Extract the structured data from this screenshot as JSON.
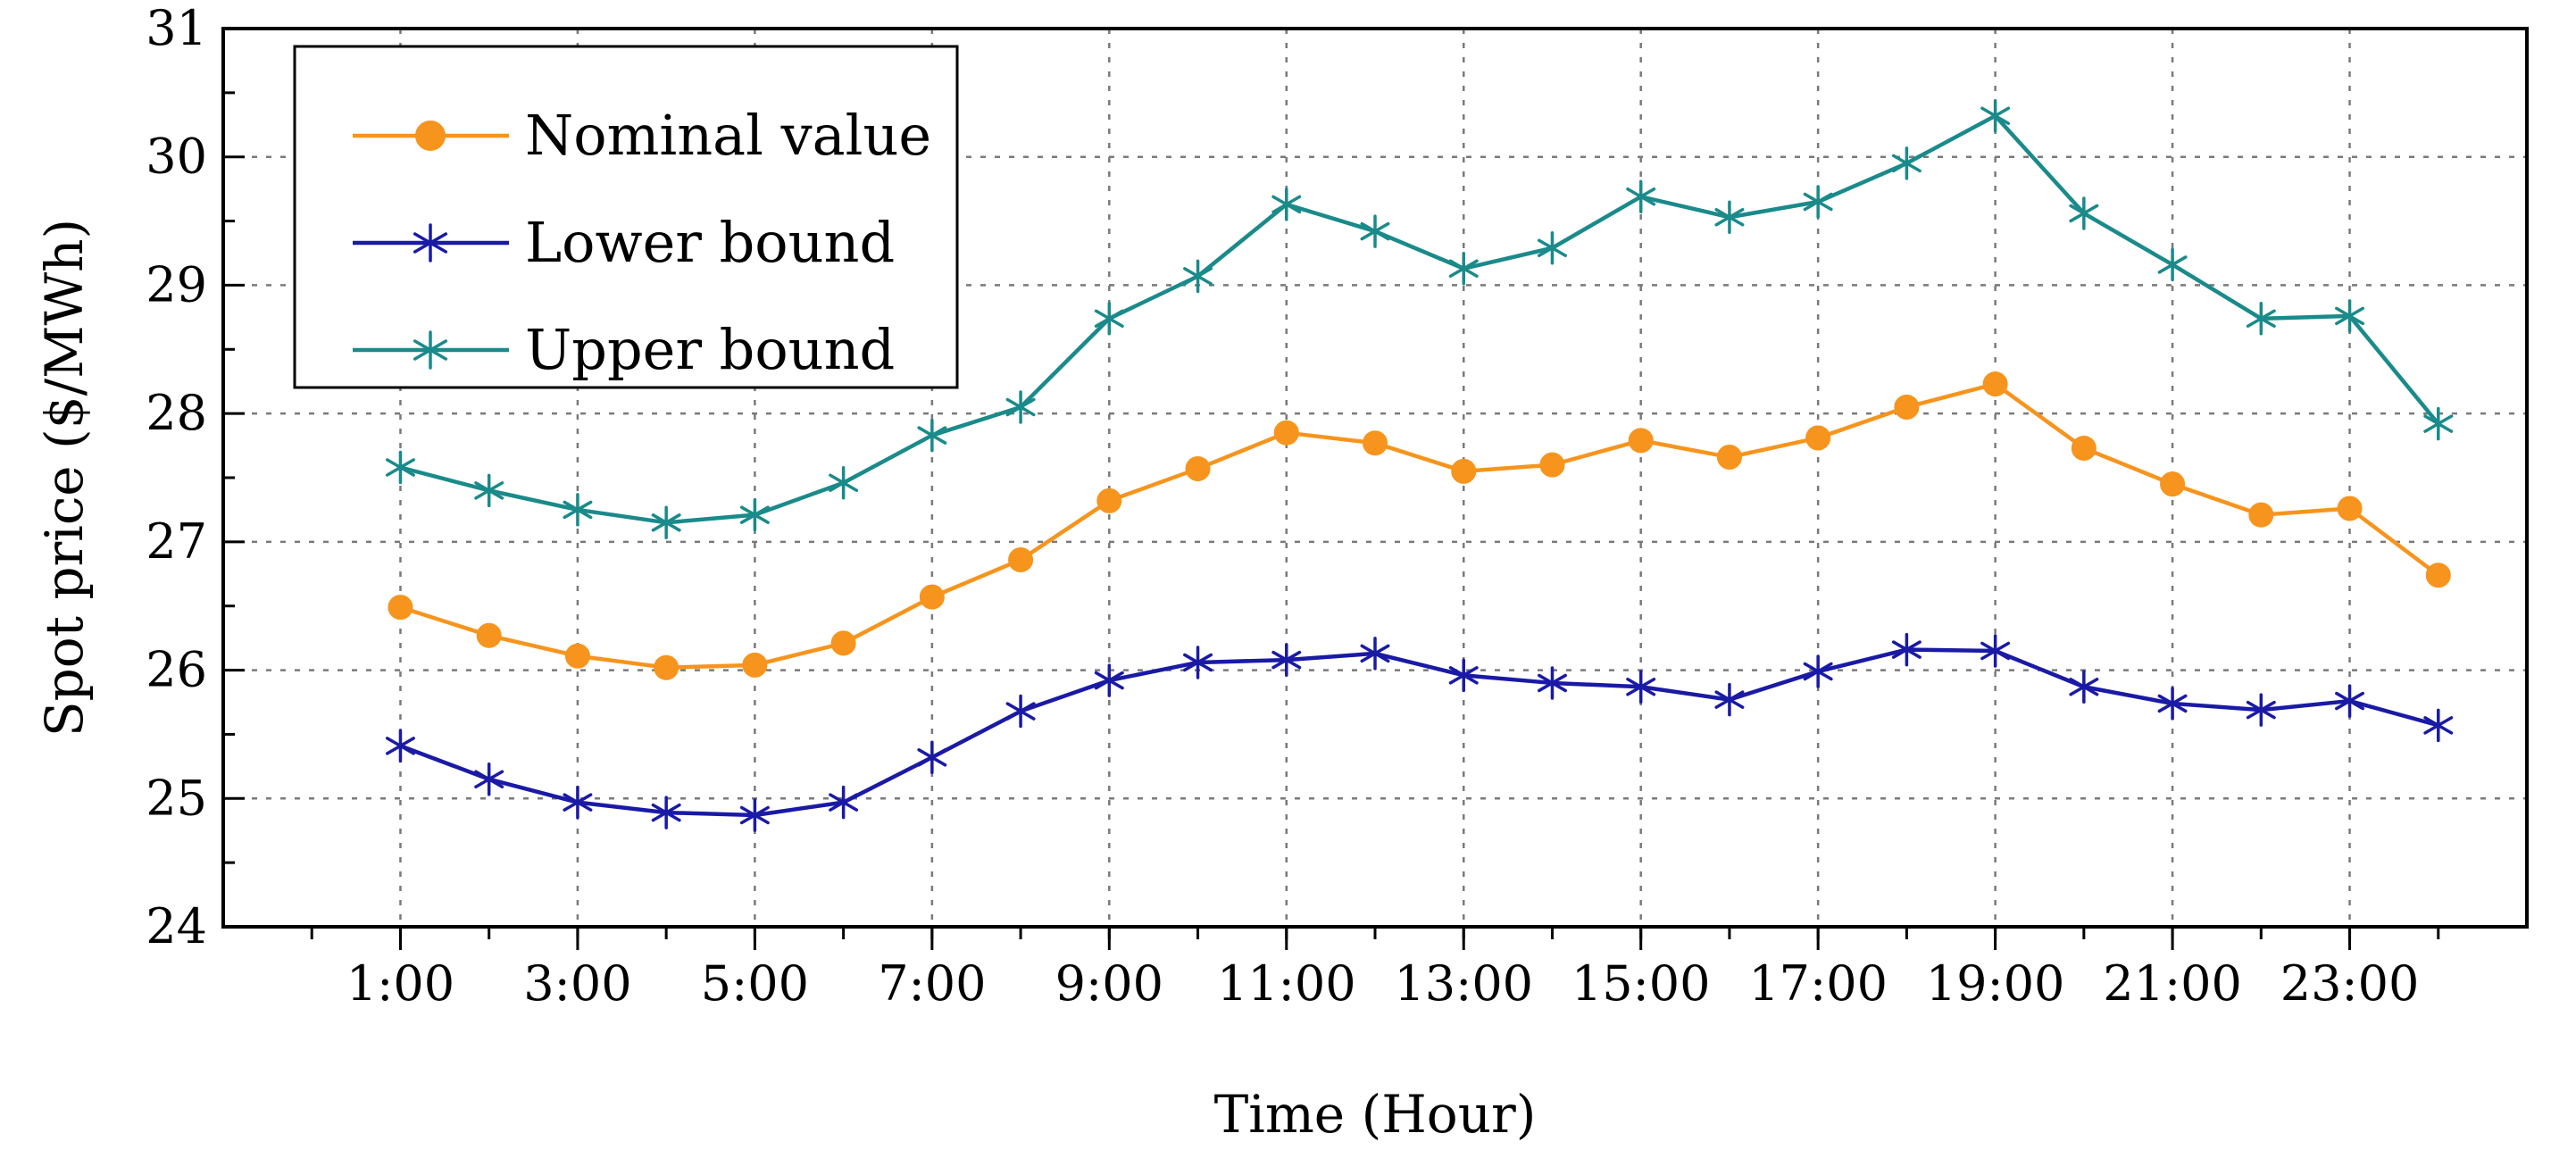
{
  "chart_data": {
    "type": "line",
    "title": "",
    "xlabel": "Time (Hour)",
    "ylabel": "Spot price ($/MWh)",
    "ylim": [
      24,
      31
    ],
    "yticks": [
      24,
      25,
      26,
      27,
      28,
      29,
      30,
      31
    ],
    "xlim": [
      -1,
      25
    ],
    "x": [
      1,
      2,
      3,
      4,
      5,
      6,
      7,
      8,
      9,
      10,
      11,
      12,
      13,
      14,
      15,
      16,
      17,
      18,
      19,
      20,
      21,
      22,
      23,
      24
    ],
    "xtick_positions": [
      1,
      3,
      5,
      7,
      9,
      11,
      13,
      15,
      17,
      19,
      21,
      23
    ],
    "xtick_labels": [
      "1:00",
      "3:00",
      "5:00",
      "7:00",
      "9:00",
      "11:00",
      "13:00",
      "15:00",
      "17:00",
      "19:00",
      "21:00",
      "23:00"
    ],
    "grid": true,
    "legend_position": "top-left",
    "series": [
      {
        "name": "Nominal value",
        "color": "#f7941d",
        "marker": "circle",
        "values": [
          26.49,
          26.27,
          26.11,
          26.02,
          26.04,
          26.21,
          26.57,
          26.86,
          27.32,
          27.57,
          27.85,
          27.77,
          27.55,
          27.6,
          27.79,
          27.66,
          27.81,
          28.05,
          28.23,
          27.73,
          27.45,
          27.21,
          27.26,
          26.74
        ]
      },
      {
        "name": "Lower bound",
        "color": "#1a1aa6",
        "marker": "asterisk",
        "values": [
          25.41,
          25.15,
          24.97,
          24.89,
          24.87,
          24.97,
          25.32,
          25.68,
          25.92,
          26.06,
          26.08,
          26.13,
          25.96,
          25.9,
          25.87,
          25.77,
          25.99,
          26.16,
          26.15,
          25.87,
          25.74,
          25.69,
          25.76,
          25.57
        ]
      },
      {
        "name": "Upper bound",
        "color": "#1a8a8a",
        "marker": "asterisk",
        "values": [
          27.58,
          27.4,
          27.25,
          27.15,
          27.21,
          27.46,
          27.83,
          28.05,
          28.74,
          29.07,
          29.63,
          29.42,
          29.13,
          29.29,
          29.69,
          29.53,
          29.65,
          29.95,
          30.32,
          29.56,
          29.16,
          28.74,
          28.76,
          27.92
        ]
      }
    ]
  }
}
